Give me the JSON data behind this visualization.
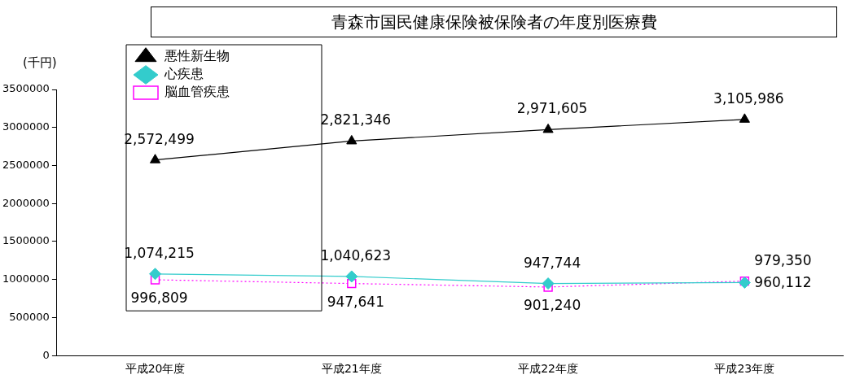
{
  "chart_data": {
    "type": "line",
    "title": "青森市国民健康保険被保険者の年度別医療費",
    "ylabel": "(千円)",
    "categories": [
      "平成20年度",
      "平成21年度",
      "平成22年度",
      "平成23年度"
    ],
    "series": [
      {
        "name": "悪性新生物",
        "color": "#000000",
        "marker": "triangle",
        "line_style": "solid",
        "values": [
          2572499,
          2821346,
          2971605,
          3105986
        ],
        "value_labels": [
          "2,572,499",
          "2,821,346",
          "2,971,605",
          "3,105,986"
        ]
      },
      {
        "name": "心疾患",
        "color": "#33cccc",
        "marker": "diamond",
        "line_style": "solid",
        "values": [
          1074215,
          1040623,
          947744,
          960112
        ],
        "value_labels": [
          "1,074,215",
          "1,040,623",
          "947,744",
          "960,112"
        ]
      },
      {
        "name": "脳血管疾患",
        "color": "#ff00ff",
        "marker": "square",
        "line_style": "dotted",
        "values": [
          996809,
          947641,
          901240,
          979350
        ],
        "value_labels": [
          "996,809",
          "947,641",
          "901,240",
          "979,350"
        ]
      }
    ],
    "ylim": [
      0,
      3500000
    ],
    "yticks": [
      0,
      500000,
      1000000,
      1500000,
      2000000,
      2500000,
      3000000,
      3500000
    ],
    "grid": false,
    "legend": "top left"
  }
}
